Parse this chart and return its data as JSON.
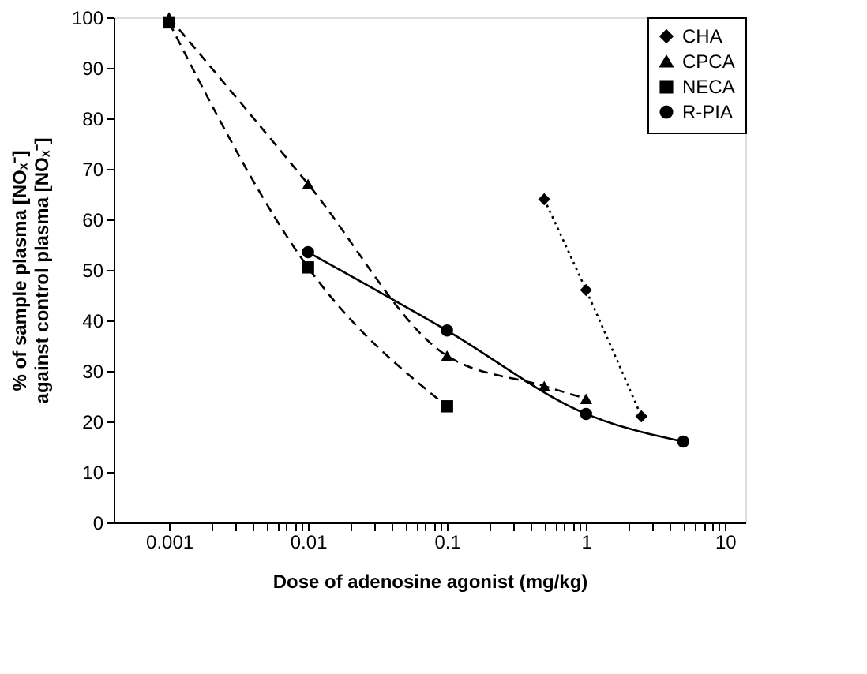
{
  "chart_data": {
    "type": "line",
    "xlabel": "Dose of adenosine agonist (mg/kg)",
    "ylabel": [
      "% of sample plasma [NOₓ⁻]",
      "against control plasma [NOₓ⁻]"
    ],
    "log": "x",
    "xlim": [
      0.0004,
      14
    ],
    "xticks": [
      0.001,
      {
        "value": 0.002,
        "label": null
      },
      {
        "value": 0.003,
        "label": null
      },
      {
        "value": 0.004,
        "label": null
      },
      {
        "value": 0.005,
        "label": null
      },
      {
        "value": 0.006,
        "label": null
      },
      {
        "value": 0.007,
        "label": null
      },
      {
        "value": 0.008,
        "label": null
      },
      {
        "value": 0.009,
        "label": null
      },
      0.01,
      {
        "value": 0.02,
        "label": null
      },
      {
        "value": 0.03,
        "label": null
      },
      {
        "value": 0.04,
        "label": null
      },
      {
        "value": 0.05,
        "label": null
      },
      {
        "value": 0.06,
        "label": null
      },
      {
        "value": 0.07,
        "label": null
      },
      {
        "value": 0.08,
        "label": null
      },
      {
        "value": 0.09,
        "label": null
      },
      0.1,
      {
        "value": 0.2,
        "label": null
      },
      {
        "value": 0.3,
        "label": null
      },
      {
        "value": 0.4,
        "label": null
      },
      {
        "value": 0.5,
        "label": null
      },
      {
        "value": 0.6,
        "label": null
      },
      {
        "value": 0.7,
        "label": null
      },
      {
        "value": 0.8,
        "label": null
      },
      {
        "value": 0.9,
        "label": null
      },
      1,
      {
        "value": 2,
        "label": null
      },
      {
        "value": 3,
        "label": null
      },
      {
        "value": 4,
        "label": null
      },
      {
        "value": 5,
        "label": null
      },
      {
        "value": 6,
        "label": null
      },
      {
        "value": 7,
        "label": null
      },
      {
        "value": 8,
        "label": null
      },
      {
        "value": 9,
        "label": null
      },
      10
    ],
    "ylim": [
      0,
      100
    ],
    "yticks": [
      0,
      10,
      20,
      30,
      40,
      50,
      60,
      70,
      80,
      90,
      100
    ],
    "grid": false,
    "legend": "top right",
    "series": [
      {
        "name": "CHA",
        "color": "#000000",
        "marker": "diamond",
        "line_style": "dotted",
        "x": [
          0.5,
          1,
          2.5
        ],
        "values": [
          64,
          46,
          21
        ]
      },
      {
        "name": "CPCA",
        "color": "#000000",
        "marker": "triangle",
        "line_style": "dashed",
        "x": [
          0.001,
          0.01,
          0.1,
          0.5,
          1
        ],
        "values": [
          100,
          67,
          33,
          27,
          24.5
        ]
      },
      {
        "name": "NECA",
        "color": "#000000",
        "marker": "square",
        "line_style": "dashed",
        "x": [
          0.001,
          0.01,
          0.1
        ],
        "values": [
          99,
          50.5,
          23
        ]
      },
      {
        "name": "R-PIA",
        "color": "#000000",
        "marker": "circle",
        "line_style": "solid",
        "x": [
          0.01,
          0.1,
          1,
          5
        ],
        "values": [
          53.5,
          38,
          21.5,
          16
        ]
      }
    ]
  }
}
